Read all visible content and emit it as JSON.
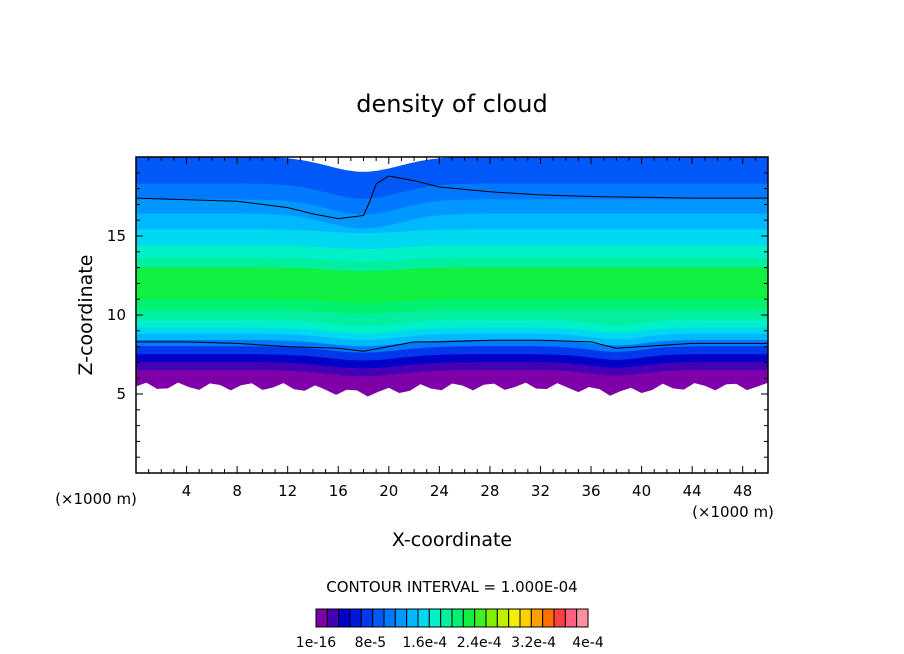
{
  "chart_data": {
    "type": "heatmap",
    "title": "density of cloud",
    "xlabel": "X-coordinate",
    "ylabel": "Z-coordinate",
    "x_unit_label": "(×1000 m)",
    "y_unit_label": "(×1000 m)",
    "xlim": [
      0,
      50
    ],
    "ylim": [
      0,
      20
    ],
    "x_ticks": [
      4,
      8,
      12,
      16,
      20,
      24,
      28,
      32,
      36,
      40,
      44,
      48
    ],
    "y_ticks": [
      5,
      10,
      15
    ],
    "contour_interval_label": "CONTOUR INTERVAL = 1.000E-04",
    "colorbar": {
      "labels": [
        "1e-16",
        "8e-5",
        "1.6e-4",
        "2.4e-4",
        "3.2e-4",
        "4e-4"
      ],
      "colors": [
        "#7d00a8",
        "#4400b4",
        "#0000c8",
        "#0018dc",
        "#0038ec",
        "#0058f8",
        "#0078ff",
        "#0098ff",
        "#00b8ff",
        "#00d8f0",
        "#00f0c8",
        "#00f0a0",
        "#00f070",
        "#10f040",
        "#40f020",
        "#80f000",
        "#c0f000",
        "#f0f000",
        "#ffd000",
        "#ffa000",
        "#ff7000",
        "#ff4040",
        "#ff6080",
        "#ff90a0"
      ]
    },
    "layers": [
      {
        "z_bottom": 18.3,
        "z_top": 20.0,
        "color": "#0058f8"
      },
      {
        "z_bottom": 17.3,
        "z_top": 18.3,
        "color": "#0078ff"
      },
      {
        "z_bottom": 16.4,
        "z_top": 17.3,
        "color": "#0098ff"
      },
      {
        "z_bottom": 15.4,
        "z_top": 16.4,
        "color": "#00b8ff"
      },
      {
        "z_bottom": 14.4,
        "z_top": 15.4,
        "color": "#00d8f0"
      },
      {
        "z_bottom": 13.6,
        "z_top": 14.4,
        "color": "#00f0c8"
      },
      {
        "z_bottom": 13.0,
        "z_top": 13.6,
        "color": "#00f0a0"
      },
      {
        "z_bottom": 11.0,
        "z_top": 13.0,
        "color": "#10f040"
      },
      {
        "z_bottom": 10.3,
        "z_top": 11.0,
        "color": "#00f070"
      },
      {
        "z_bottom": 9.7,
        "z_top": 10.3,
        "color": "#00f0a0"
      },
      {
        "z_bottom": 9.2,
        "z_top": 9.7,
        "color": "#00f0c8"
      },
      {
        "z_bottom": 8.8,
        "z_top": 9.2,
        "color": "#00d8f0"
      },
      {
        "z_bottom": 8.4,
        "z_top": 8.8,
        "color": "#00b8ff"
      },
      {
        "z_bottom": 8.0,
        "z_top": 8.4,
        "color": "#0078ff"
      },
      {
        "z_bottom": 7.5,
        "z_top": 8.0,
        "color": "#0038ec"
      },
      {
        "z_bottom": 7.0,
        "z_top": 7.5,
        "color": "#0000c8"
      },
      {
        "z_bottom": 6.5,
        "z_top": 7.0,
        "color": "#4400b4"
      },
      {
        "z_bottom": 5.5,
        "z_top": 6.5,
        "color": "#7d00a8"
      }
    ],
    "contour_lines": [
      {
        "name": "upper",
        "x": [
          0,
          4,
          8,
          12,
          14,
          16,
          18,
          18.5,
          19,
          20,
          22,
          24,
          28,
          32,
          36,
          40,
          44,
          48,
          50
        ],
        "z": [
          17.4,
          17.3,
          17.2,
          16.8,
          16.4,
          16.1,
          16.3,
          17.2,
          18.3,
          18.8,
          18.5,
          18.1,
          17.8,
          17.6,
          17.5,
          17.45,
          17.4,
          17.4,
          17.4
        ]
      },
      {
        "name": "lower",
        "x": [
          0,
          4,
          8,
          12,
          16,
          18,
          20,
          22,
          24,
          28,
          32,
          36,
          38,
          40,
          44,
          48,
          50
        ],
        "z": [
          8.3,
          8.3,
          8.2,
          8.0,
          7.9,
          7.7,
          8.0,
          8.3,
          8.3,
          8.4,
          8.4,
          8.3,
          7.9,
          8.0,
          8.2,
          8.2,
          8.2
        ]
      }
    ]
  }
}
